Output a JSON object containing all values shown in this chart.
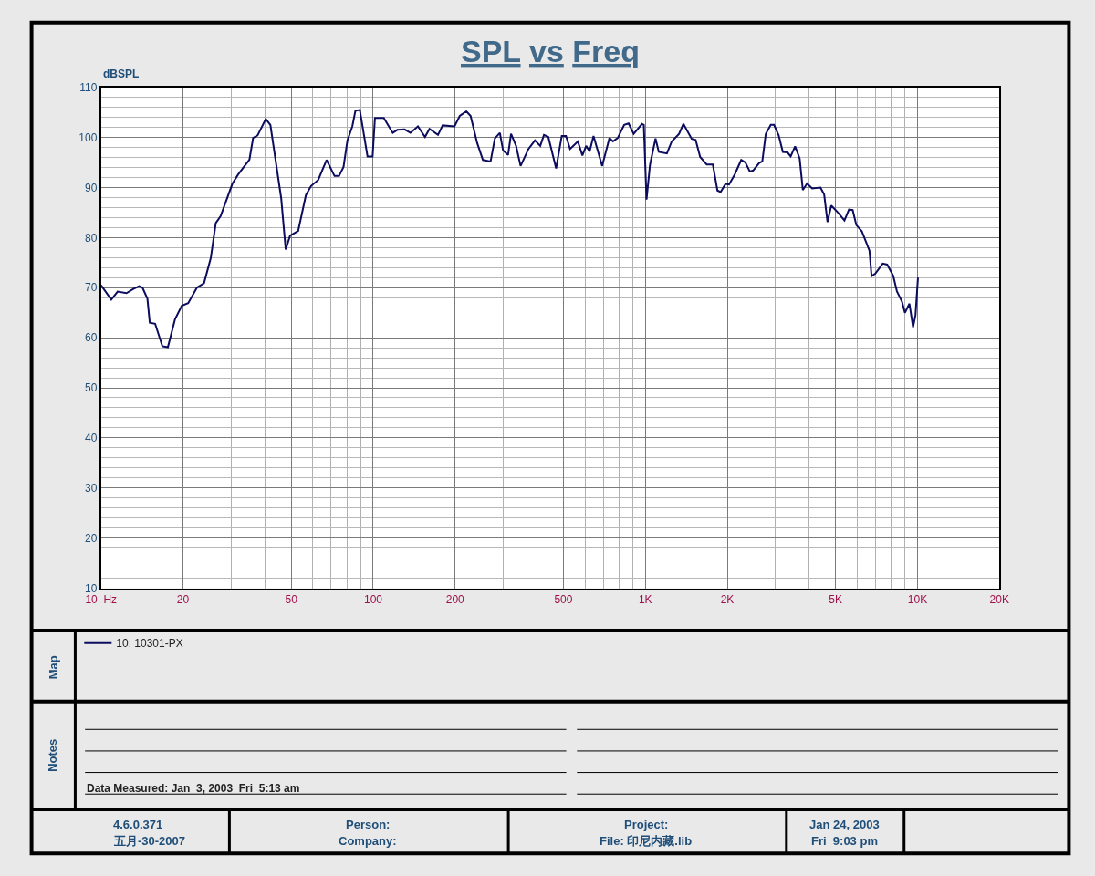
{
  "chart_data": {
    "type": "line",
    "title": "SPL vs Freq",
    "ylabel": "dBSPL",
    "x": [
      10,
      10.9,
      11.5,
      12.4,
      13.1,
      13.8,
      14.2,
      14.8,
      15.1,
      15.8,
      16.8,
      17.6,
      18.7,
      19.8,
      20.9,
      22.5,
      23.9,
      25.3,
      26.4,
      27.5,
      30.4,
      31.9,
      35.1,
      36.2,
      37.6,
      40.3,
      41.9,
      45.9,
      47.7,
      49.5,
      53,
      56.6,
      59.1,
      62.8,
      67.4,
      72.1,
      74.9,
      77.8,
      80.4,
      83.8,
      86,
      89.3,
      95.3,
      99.5,
      101.5,
      109.4,
      118,
      122.6,
      130.5,
      137,
      146,
      155,
      161,
      173,
      180,
      199,
      208,
      220,
      228,
      241,
      253,
      270,
      280,
      292,
      300,
      313,
      321,
      335,
      348,
      372,
      393,
      411,
      424,
      440,
      470,
      493,
      511,
      529,
      565,
      587,
      606,
      624,
      645,
      694,
      738,
      760,
      792,
      836,
      868,
      906,
      972,
      987,
      1010,
      1040,
      1090,
      1120,
      1200,
      1250,
      1330,
      1380,
      1480,
      1530,
      1590,
      1680,
      1770,
      1840,
      1890,
      1970,
      2030,
      2130,
      2250,
      2330,
      2420,
      2490,
      2620,
      2690,
      2770,
      2890,
      2970,
      3090,
      3200,
      3330,
      3420,
      3550,
      3690,
      3790,
      3930,
      4100,
      4400,
      4540,
      4670,
      4820,
      5100,
      5390,
      5600,
      5780,
      5960,
      6240,
      6660,
      6780,
      7000,
      7450,
      7740,
      8140,
      8400,
      8770,
      8990,
      9340,
      9630,
      9830,
      10040
    ],
    "series": [
      {
        "name": "10: 10301-PX",
        "color": "#0c0c5e",
        "values": [
          70.5,
          67.6,
          69.2,
          68.9,
          69.7,
          70.3,
          70,
          67.8,
          63,
          62.8,
          58.3,
          58.1,
          63.7,
          66.4,
          66.9,
          70,
          70.9,
          75.9,
          82.9,
          84.3,
          90.8,
          92.6,
          95.6,
          99.9,
          100.4,
          103.7,
          102.5,
          87.9,
          77.6,
          80.4,
          81.3,
          88.5,
          90.3,
          91.5,
          95.5,
          92.3,
          92.3,
          94.1,
          99.4,
          102.2,
          105.3,
          105.5,
          96.2,
          96.2,
          103.9,
          103.9,
          100.9,
          101.5,
          101.6,
          100.9,
          102.2,
          100.1,
          101.7,
          100.5,
          102.4,
          102.2,
          104.3,
          105.2,
          104.3,
          98.9,
          95.5,
          95.2,
          99.8,
          100.9,
          97.4,
          96.5,
          100.7,
          98.3,
          94.3,
          97.7,
          99.4,
          98.3,
          100.5,
          100.1,
          93.8,
          100.3,
          100.3,
          97.7,
          99.2,
          96.4,
          98.3,
          97.2,
          100.3,
          94.3,
          99.9,
          99.2,
          99.9,
          102.5,
          102.8,
          100.7,
          102.7,
          102.5,
          87.6,
          94.5,
          99.8,
          97.1,
          96.8,
          99.2,
          100.7,
          102.7,
          99.7,
          99.5,
          96.1,
          94.6,
          94.6,
          89.4,
          89.1,
          90.7,
          90.6,
          92.6,
          95.5,
          95,
          93.2,
          93.4,
          94.9,
          95.2,
          100.7,
          102.5,
          102.5,
          100.4,
          97.1,
          97,
          96.2,
          98.2,
          95.8,
          89.5,
          90.8,
          89.8,
          90,
          88.6,
          83.1,
          86.4,
          85,
          83.4,
          85.6,
          85.5,
          82.5,
          81.3,
          77.4,
          72.3,
          72.8,
          74.8,
          74.6,
          72.4,
          69.3,
          67.2,
          65,
          66.8,
          62.1,
          64.5,
          72
        ]
      }
    ],
    "xlim": [
      10,
      20000
    ],
    "xticks": [
      {
        "value": 10,
        "label": "10  Hz"
      },
      20,
      50,
      100,
      200,
      500,
      {
        "value": 1000,
        "label": "1K"
      },
      {
        "value": 2000,
        "label": "2K"
      },
      {
        "value": 5000,
        "label": "5K"
      },
      {
        "value": 10000,
        "label": "10K"
      },
      {
        "value": 20000,
        "label": "20K"
      }
    ],
    "ylim": [
      10,
      110
    ],
    "yticks": [
      10,
      20,
      30,
      40,
      50,
      60,
      70,
      80,
      90,
      100,
      110
    ],
    "log": "x",
    "grid": true,
    "legend": "bottom",
    "annotations": [
      "Map",
      "Notes",
      "Data Measured: Jan  3, 2003  Fri  5:13 am",
      "4.6.0.371",
      "五月-30-2007",
      "Person:",
      "Company:",
      "Project:",
      "File: 印尼内藏.lib",
      "Jan 24, 2003",
      "Fri  9:03 pm"
    ]
  }
}
